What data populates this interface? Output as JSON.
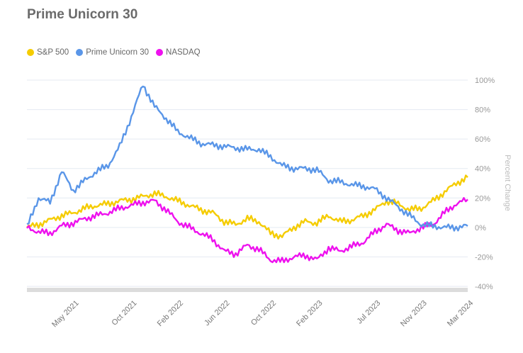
{
  "chart_data": {
    "type": "line",
    "title": "Prime Unicorn 30",
    "ylabel": "Percent Change",
    "ylim": [
      -40,
      100
    ],
    "yticks": [
      "100%",
      "80%",
      "60%",
      "40%",
      "20%",
      "0%",
      "-20%",
      "-40%"
    ],
    "xtick_labels": [
      "May 2021",
      "Oct 2021",
      "Feb 2022",
      "Jun 2022",
      "Oct 2022",
      "Feb 2023",
      "Jul 2023",
      "Nov 2023",
      "Mar 2024"
    ],
    "x_range": [
      0,
      38
    ],
    "xtick_positions": [
      4.5,
      9.5,
      13.5,
      17.5,
      21.5,
      25.5,
      30.5,
      34.5,
      38.5
    ],
    "legend_position": "top-left",
    "grid": true,
    "series": [
      {
        "name": "S&P 500",
        "color": "#f5cc00",
        "x": [
          0,
          1,
          2,
          3,
          4,
          5,
          6,
          7,
          8,
          9,
          10,
          11,
          12,
          13,
          14,
          15,
          16,
          17,
          18,
          19,
          20,
          21,
          22,
          23,
          24,
          25,
          26,
          27,
          28,
          29,
          30,
          31,
          32,
          33,
          34,
          35,
          36,
          37,
          38
        ],
        "values": [
          0,
          2,
          5,
          8,
          10,
          13,
          15,
          16,
          18,
          19,
          21,
          23,
          21,
          18,
          15,
          12,
          10,
          4,
          2,
          6,
          4,
          -4,
          -6,
          0,
          4,
          3,
          8,
          4,
          5,
          8,
          12,
          18,
          16,
          12,
          13,
          18,
          24,
          30,
          34
        ]
      },
      {
        "name": "Prime Unicorn 30",
        "color": "#5a96e8",
        "x": [
          0,
          1,
          2,
          3,
          4,
          5,
          6,
          7,
          8,
          9,
          10,
          11,
          12,
          13,
          14,
          15,
          16,
          17,
          18,
          19,
          20,
          21,
          22,
          23,
          24,
          25,
          26,
          27,
          28,
          29,
          30,
          31,
          32,
          33,
          34,
          35,
          36,
          37,
          38
        ],
        "values": [
          0,
          20,
          17,
          38,
          25,
          32,
          38,
          42,
          55,
          75,
          97,
          82,
          74,
          65,
          61,
          57,
          56,
          55,
          54,
          53,
          53,
          48,
          42,
          40,
          40,
          39,
          32,
          31,
          29,
          28,
          26,
          20,
          14,
          8,
          2,
          1,
          0,
          0,
          1
        ]
      },
      {
        "name": "NASDAQ",
        "color": "#ee11ee",
        "x": [
          0,
          1,
          2,
          3,
          4,
          5,
          6,
          7,
          8,
          9,
          10,
          11,
          12,
          13,
          14,
          15,
          16,
          17,
          18,
          19,
          20,
          21,
          22,
          23,
          24,
          25,
          26,
          27,
          28,
          29,
          30,
          31,
          32,
          33,
          34,
          35,
          36,
          37,
          38
        ],
        "values": [
          0,
          -3,
          -4,
          1,
          3,
          6,
          8,
          10,
          13,
          15,
          17,
          18,
          12,
          4,
          0,
          -4,
          -8,
          -16,
          -18,
          -12,
          -15,
          -22,
          -23,
          -20,
          -19,
          -22,
          -14,
          -16,
          -13,
          -10,
          -3,
          2,
          -2,
          -4,
          0,
          2,
          10,
          16,
          19
        ]
      }
    ]
  }
}
